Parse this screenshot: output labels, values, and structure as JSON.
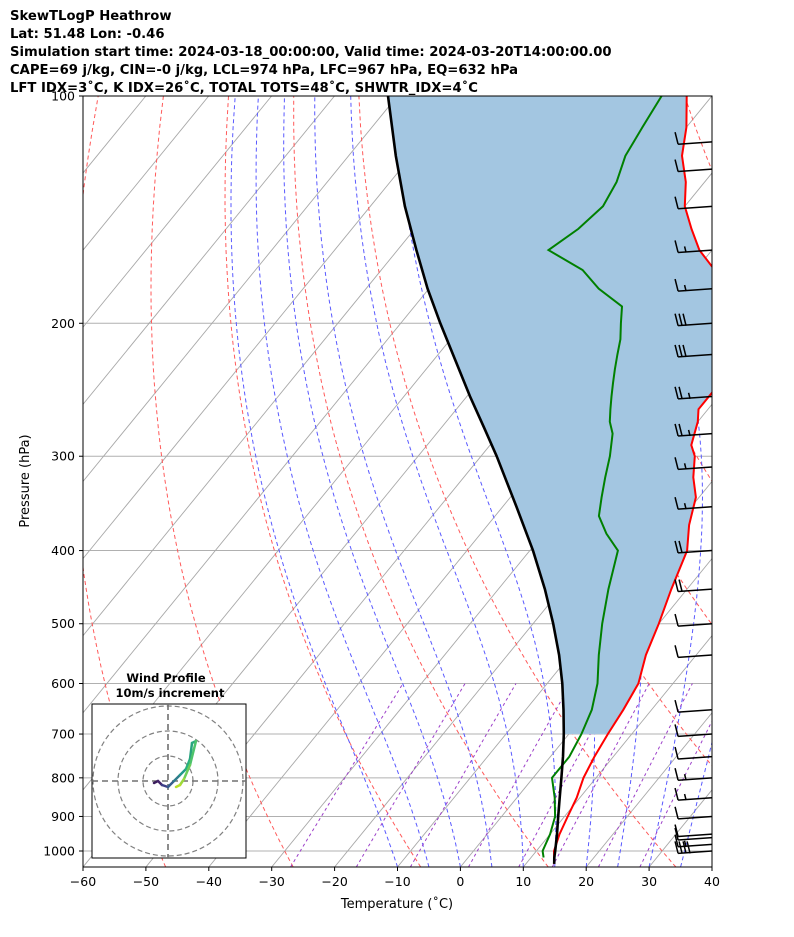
{
  "header": {
    "line1": "SkewTLogP Heathrow",
    "line2": "Lat: 51.48   Lon: -0.46",
    "line3": "Simulation start time: 2024-03-18_00:00:00, Valid time: 2024-03-20T14:00:00.00",
    "line4": "CAPE=69 j/kg, CIN=-0 j/kg, LCL=974 hPa, LFC=967 hPa, EQ=632 hPa",
    "line5": "LFT IDX=3˚C, K IDX=26˚C, TOTAL TOTS=48˚C, SHWTR_IDX=4˚C"
  },
  "chart_data": {
    "type": "line",
    "subtype": "skew-T log-P diagram",
    "xlabel": "Temperature (˚C)",
    "ylabel": "Pressure (hPa)",
    "xlim": [
      -60,
      40
    ],
    "ylim": [
      1050,
      100
    ],
    "x_ticks": [
      "−60",
      "−50",
      "−40",
      "−30",
      "−20",
      "−10",
      "0",
      "10",
      "20",
      "30",
      "40"
    ],
    "y_ticks": [
      "100",
      "200",
      "300",
      "400",
      "500",
      "600",
      "700",
      "800",
      "900",
      "1000"
    ],
    "y_scale": "log",
    "series": [
      {
        "role": "temperature",
        "color": "#ff0000",
        "points": [
          [
            14.5,
            1040
          ],
          [
            12.8,
            1000
          ],
          [
            11.5,
            950
          ],
          [
            10.5,
            900
          ],
          [
            9.5,
            850
          ],
          [
            8,
            800
          ],
          [
            7,
            750
          ],
          [
            6.2,
            700
          ],
          [
            5.5,
            650
          ],
          [
            4.5,
            600
          ],
          [
            2,
            550
          ],
          [
            0,
            500
          ],
          [
            -2.5,
            450
          ],
          [
            -5,
            400
          ],
          [
            -8,
            370
          ],
          [
            -10.5,
            340
          ],
          [
            -13.5,
            320
          ],
          [
            -16,
            300
          ],
          [
            -18,
            290
          ],
          [
            -20,
            270
          ],
          [
            -21.5,
            260
          ],
          [
            -21.5,
            250
          ],
          [
            -21.5,
            240
          ],
          [
            -22.5,
            230
          ],
          [
            -23.5,
            220
          ],
          [
            -23.5,
            210
          ],
          [
            -23.5,
            200
          ],
          [
            -25,
            195
          ],
          [
            -29,
            190
          ],
          [
            -33,
            180
          ],
          [
            -37,
            170
          ],
          [
            -42,
            160
          ],
          [
            -46,
            150
          ],
          [
            -50,
            140
          ],
          [
            -53,
            130
          ],
          [
            -57,
            120
          ],
          [
            -60,
            110
          ],
          [
            -64,
            100
          ]
        ]
      },
      {
        "role": "dewpoint",
        "color": "#008000",
        "points": [
          [
            12,
            1020
          ],
          [
            11,
            1000
          ],
          [
            10,
            950
          ],
          [
            8.5,
            900
          ],
          [
            6,
            850
          ],
          [
            3,
            800
          ],
          [
            3,
            750
          ],
          [
            2,
            700
          ],
          [
            0.5,
            650
          ],
          [
            -2,
            600
          ],
          [
            -5.5,
            550
          ],
          [
            -9,
            500
          ],
          [
            -12.5,
            450
          ],
          [
            -16,
            400
          ],
          [
            -20,
            380
          ],
          [
            -23.5,
            360
          ],
          [
            -25.5,
            340
          ],
          [
            -27.5,
            320
          ],
          [
            -29.5,
            300
          ],
          [
            -32,
            280
          ],
          [
            -34,
            270
          ],
          [
            -35.5,
            260
          ],
          [
            -37,
            250
          ],
          [
            -38.5,
            240
          ],
          [
            -40,
            230
          ],
          [
            -41.5,
            220
          ],
          [
            -43,
            210
          ],
          [
            -45,
            200
          ],
          [
            -47,
            190
          ],
          [
            -53,
            180
          ],
          [
            -58,
            170
          ],
          [
            -66,
            160
          ],
          [
            -64,
            150
          ],
          [
            -63,
            140
          ],
          [
            -64,
            130
          ],
          [
            -66,
            120
          ],
          [
            -67,
            110
          ],
          [
            -68,
            100
          ]
        ]
      },
      {
        "role": "parcel",
        "color": "#000000",
        "points": [
          [
            14.5,
            1040
          ],
          [
            13.7,
            1020
          ],
          [
            13.0,
            1000
          ],
          [
            11.1,
            950
          ],
          [
            9.0,
            900
          ],
          [
            6.8,
            850
          ],
          [
            4.5,
            800
          ],
          [
            2.0,
            750
          ],
          [
            -0.8,
            700
          ],
          [
            -4.0,
            650
          ],
          [
            -7.6,
            600
          ],
          [
            -11.8,
            550
          ],
          [
            -16.8,
            500
          ],
          [
            -22.6,
            450
          ],
          [
            -29.5,
            400
          ],
          [
            -37.8,
            350
          ],
          [
            -47.5,
            300
          ],
          [
            -53.2,
            275
          ],
          [
            -59.5,
            250
          ],
          [
            -66.2,
            225
          ],
          [
            -73.7,
            200
          ],
          [
            -80.2,
            180
          ],
          [
            -87.0,
            160
          ],
          [
            -94.5,
            140
          ],
          [
            -102.5,
            120
          ],
          [
            -111.5,
            100
          ]
        ]
      }
    ],
    "cape_fill_color": "#a3c6e1",
    "reference_lines": {
      "isotherms_step": 10,
      "dry_adiabats": "red dashed",
      "moist_adiabats": "blue dashed",
      "mixing_ratio": "purple dashed"
    },
    "wind_barbs": [
      {
        "p": 1000,
        "speed": 40
      },
      {
        "p": 980,
        "speed": 15
      },
      {
        "p": 960,
        "speed": 10
      },
      {
        "p": 950,
        "speed": 10
      },
      {
        "p": 900,
        "speed": 10
      },
      {
        "p": 850,
        "speed": 15
      },
      {
        "p": 800,
        "speed": 15
      },
      {
        "p": 750,
        "speed": 10
      },
      {
        "p": 700,
        "speed": 10
      },
      {
        "p": 650,
        "speed": 10
      },
      {
        "p": 550,
        "speed": 10
      },
      {
        "p": 500,
        "speed": 10
      },
      {
        "p": 450,
        "speed": 20
      },
      {
        "p": 400,
        "speed": 20
      },
      {
        "p": 350,
        "speed": 15
      },
      {
        "p": 310,
        "speed": 15
      },
      {
        "p": 280,
        "speed": 25
      },
      {
        "p": 250,
        "speed": 25
      },
      {
        "p": 220,
        "speed": 30
      },
      {
        "p": 200,
        "speed": 30
      },
      {
        "p": 180,
        "speed": 15
      },
      {
        "p": 160,
        "speed": 15
      },
      {
        "p": 140,
        "speed": 10
      },
      {
        "p": 125,
        "speed": 10
      },
      {
        "p": 115,
        "speed": 10
      }
    ]
  },
  "inset": {
    "title": "Wind Profile",
    "subtitle": "10m/s increment"
  }
}
